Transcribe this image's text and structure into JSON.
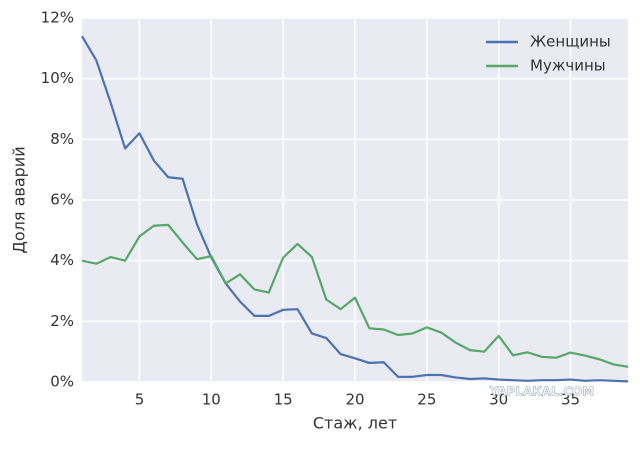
{
  "chart_data": {
    "type": "line",
    "xlabel": "Стаж, лет",
    "ylabel": "Доля аварий",
    "x": [
      1,
      2,
      3,
      4,
      5,
      6,
      7,
      8,
      9,
      10,
      11,
      12,
      13,
      14,
      15,
      16,
      17,
      18,
      19,
      20,
      21,
      22,
      23,
      24,
      25,
      26,
      27,
      28,
      29,
      30,
      31,
      32,
      33,
      34,
      35,
      36,
      37,
      38,
      39
    ],
    "series": [
      {
        "name": "Женщины",
        "color": "#4c72b0",
        "values": [
          11.4,
          10.6,
          9.2,
          7.7,
          8.2,
          7.3,
          6.75,
          6.7,
          5.2,
          4.1,
          3.25,
          2.65,
          2.18,
          2.18,
          2.38,
          2.4,
          1.6,
          1.45,
          0.92,
          0.78,
          0.63,
          0.65,
          0.17,
          0.17,
          0.23,
          0.23,
          0.15,
          0.1,
          0.12,
          0.08,
          0.06,
          0.04,
          0.06,
          0.06,
          0.08,
          0.04,
          0.06,
          0.04,
          0.02
        ]
      },
      {
        "name": "Мужчины",
        "color": "#55a868",
        "values": [
          4.0,
          3.9,
          4.12,
          4.0,
          4.8,
          5.15,
          5.18,
          4.6,
          4.05,
          4.15,
          3.25,
          3.55,
          3.05,
          2.95,
          4.1,
          4.55,
          4.12,
          2.72,
          2.4,
          2.78,
          1.77,
          1.73,
          1.55,
          1.6,
          1.8,
          1.63,
          1.3,
          1.05,
          1.0,
          1.52,
          0.88,
          0.98,
          0.83,
          0.8,
          0.97,
          0.87,
          0.75,
          0.58,
          0.5
        ]
      }
    ],
    "xlim": [
      1,
      39
    ],
    "xticks": [
      5,
      10,
      15,
      20,
      25,
      30,
      35
    ],
    "ylim": [
      0,
      12
    ],
    "yticks": [
      {
        "value": 0,
        "label": "0%"
      },
      {
        "value": 2,
        "label": "2%"
      },
      {
        "value": 4,
        "label": "4%"
      },
      {
        "value": 6,
        "label": "6%"
      },
      {
        "value": 8,
        "label": "8%"
      },
      {
        "value": 10,
        "label": "10%"
      },
      {
        "value": 12,
        "label": "12%"
      }
    ],
    "grid": true,
    "legend": "upper-right",
    "watermark": "YAPLAKAL.COM"
  }
}
